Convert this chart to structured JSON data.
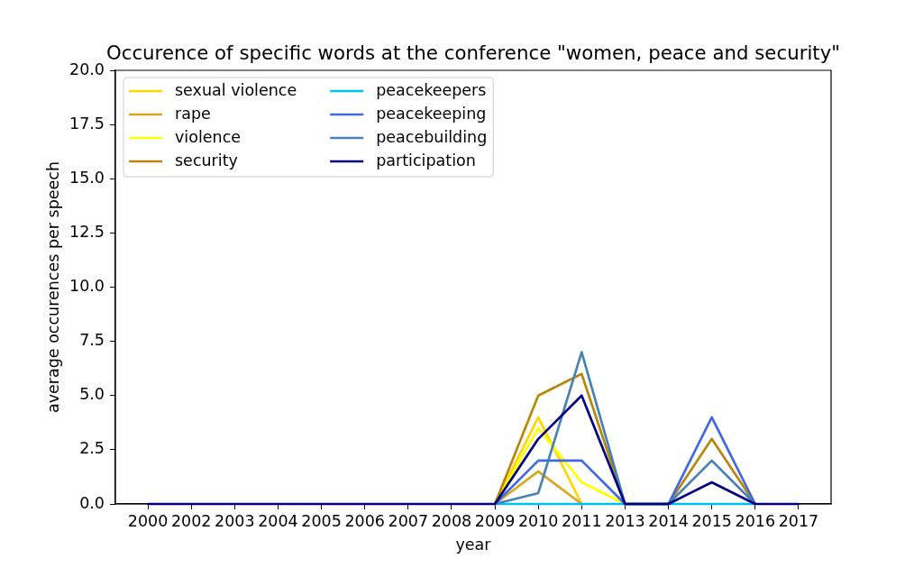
{
  "chart_data": {
    "type": "line",
    "title": "Occurence of specific words at the conference \"women, peace and security\"",
    "xlabel": "year",
    "ylabel": "average occurences per speech",
    "categories": [
      "2000",
      "2002",
      "2003",
      "2004",
      "2005",
      "2006",
      "2007",
      "2008",
      "2009",
      "2010",
      "2011",
      "2013",
      "2014",
      "2015",
      "2016",
      "2017"
    ],
    "ylim": [
      0,
      20
    ],
    "yticks": [
      {
        "value": 0,
        "label": "0.0"
      },
      2.5,
      {
        "value": 5,
        "label": "5.0"
      },
      7.5,
      {
        "value": 10,
        "label": "10.0"
      },
      12.5,
      {
        "value": 15,
        "label": "15.0"
      },
      17.5,
      {
        "value": 20,
        "label": "20.0"
      }
    ],
    "grid": false,
    "legend": "top left",
    "marker": "none",
    "series": [
      {
        "name": "sexual violence",
        "color": "#ffd700",
        "values": [
          null,
          null,
          null,
          null,
          null,
          null,
          null,
          null,
          0,
          4,
          0,
          null,
          null,
          null,
          null,
          null
        ]
      },
      {
        "name": "rape",
        "color": "#daa520",
        "values": [
          null,
          null,
          null,
          null,
          null,
          null,
          null,
          null,
          0,
          1.5,
          0,
          null,
          null,
          null,
          null,
          null
        ]
      },
      {
        "name": "violence",
        "color": "#ffff00",
        "values": [
          null,
          null,
          null,
          null,
          null,
          null,
          null,
          null,
          0,
          3.5,
          1,
          0,
          null,
          null,
          null,
          null
        ]
      },
      {
        "name": "security",
        "color": "#b8860b",
        "values": [
          null,
          null,
          null,
          null,
          null,
          null,
          null,
          null,
          0,
          5,
          6,
          0,
          0,
          3,
          0,
          null
        ]
      },
      {
        "name": "peacekeepers",
        "color": "#00bfff",
        "values": [
          null,
          null,
          null,
          null,
          null,
          null,
          null,
          null,
          0,
          0,
          0,
          0,
          0,
          0,
          0,
          null
        ]
      },
      {
        "name": "peacekeeping",
        "color": "#4169e1",
        "values": [
          null,
          null,
          null,
          null,
          null,
          null,
          null,
          null,
          0,
          2,
          2,
          0,
          0,
          4,
          0,
          null
        ]
      },
      {
        "name": "peacebuilding",
        "color": "#4682b4",
        "values": [
          null,
          null,
          null,
          null,
          null,
          null,
          null,
          null,
          0,
          0.5,
          7,
          0,
          0,
          2,
          0,
          null
        ]
      },
      {
        "name": "participation",
        "color": "#000080",
        "values": [
          0,
          0,
          0,
          0,
          0,
          0,
          0,
          0,
          0,
          3,
          5,
          0,
          0,
          1,
          0,
          0
        ]
      }
    ]
  }
}
